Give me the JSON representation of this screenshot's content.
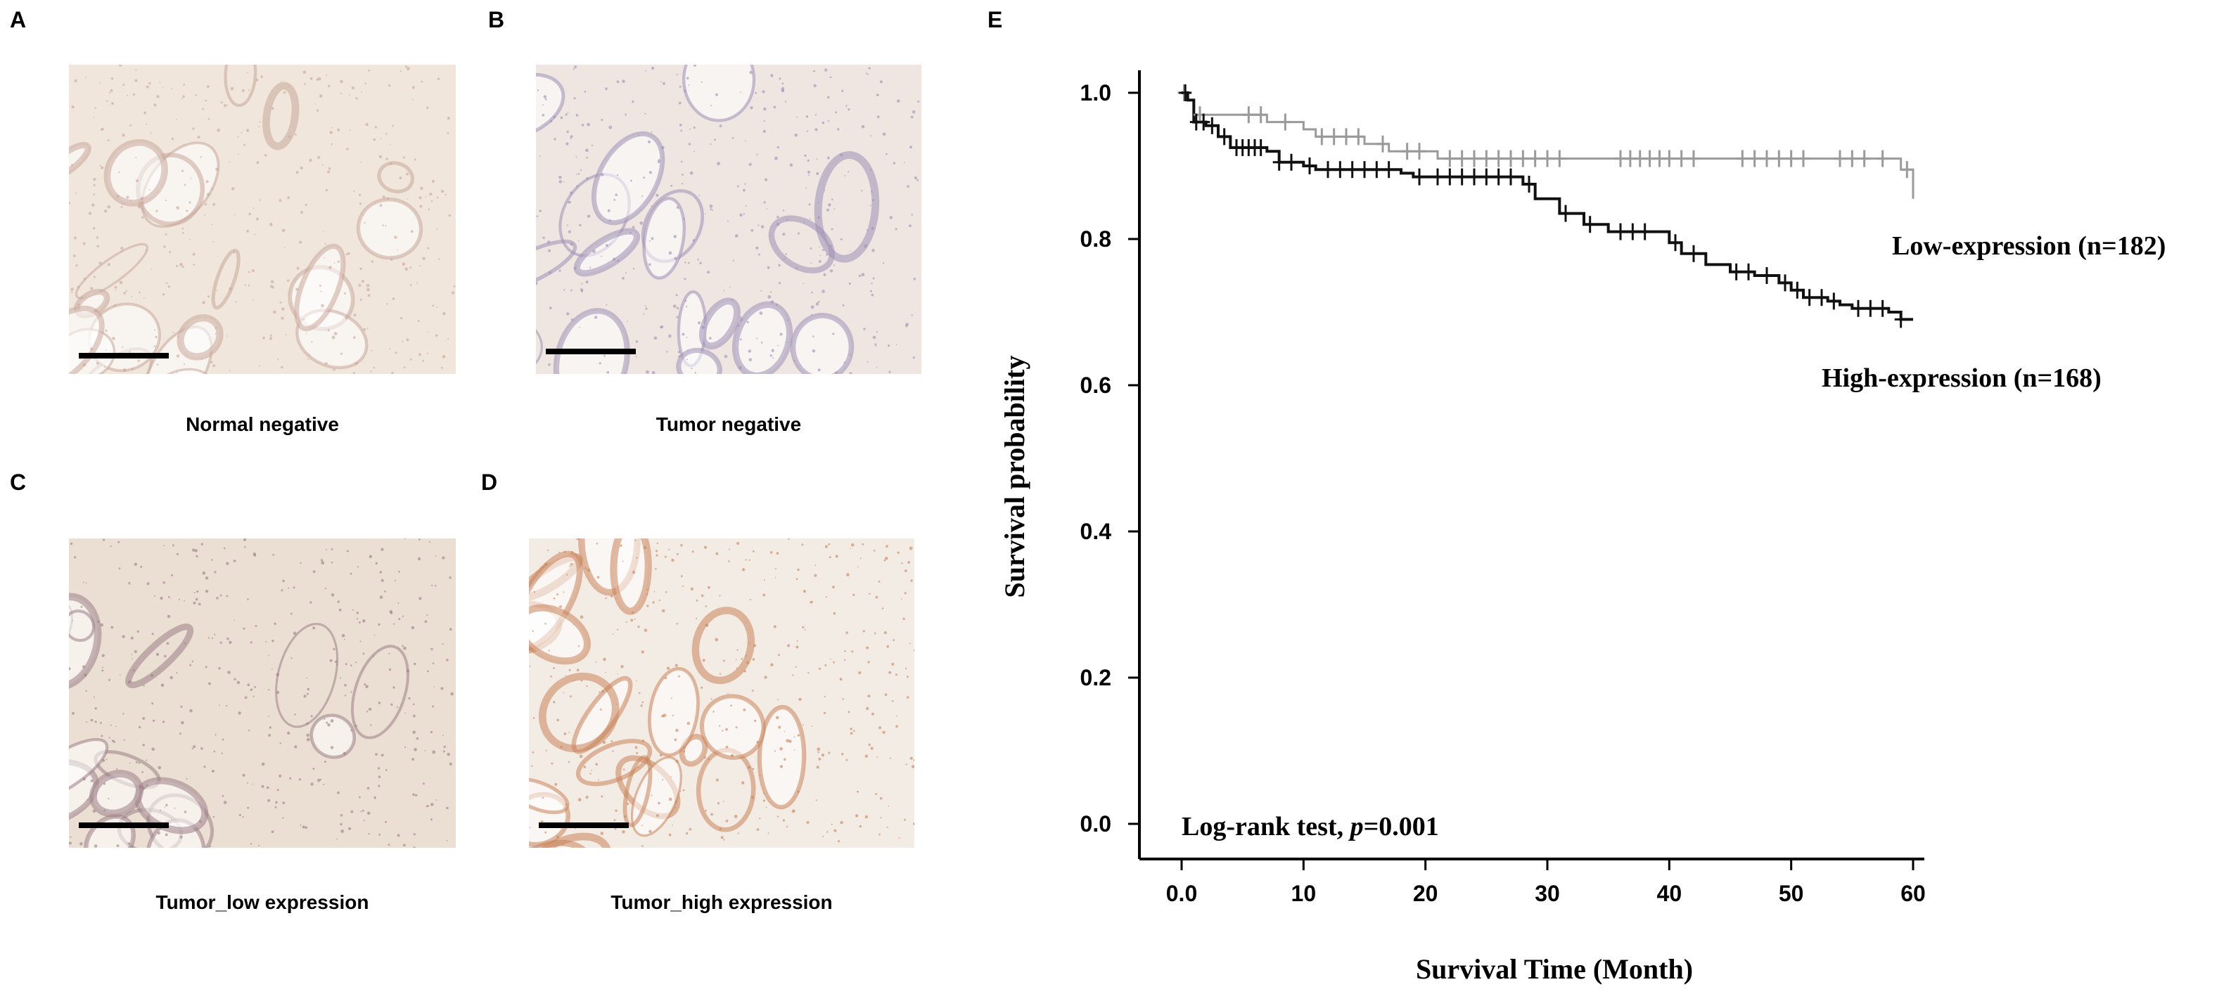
{
  "panels": [
    {
      "letter": "A",
      "caption": "Normal negative",
      "stain": "#f0e6dc",
      "tint": "#c9a79a"
    },
    {
      "letter": "B",
      "caption": "Tumor negative",
      "stain": "#efe6e2",
      "tint": "#9c8fb5"
    },
    {
      "letter": "C",
      "caption": "Tumor_low expression",
      "stain": "#eadfd2",
      "tint": "#9b7e86"
    },
    {
      "letter": "D",
      "caption": "Tumor_high expression",
      "stain": "#f3ece4",
      "tint": "#c8845a"
    }
  ],
  "chart_letter": "E",
  "chart_data": {
    "type": "line",
    "title": "",
    "xlabel": "Survival Time (Month)",
    "ylabel": "Survival probability",
    "xlim": [
      0,
      60
    ],
    "ylim": [
      0,
      1
    ],
    "xticks": [
      "0.0",
      "10",
      "20",
      "30",
      "40",
      "50",
      "60"
    ],
    "yticks": [
      "0.0",
      "0.2",
      "0.4",
      "0.6",
      "0.8",
      "1.0"
    ],
    "annotation_prefix": "Log-rank test, ",
    "annotation_p": "p",
    "annotation_value": "=0.001",
    "series": [
      {
        "name": "Low-expression (n=182)",
        "color": "#9a9a9a",
        "x": [
          0,
          0.5,
          1,
          6,
          7,
          10,
          11,
          15,
          17,
          19,
          21,
          58,
          59,
          60
        ],
        "y": [
          1.0,
          0.99,
          0.97,
          0.97,
          0.96,
          0.95,
          0.94,
          0.93,
          0.92,
          0.92,
          0.91,
          0.91,
          0.895,
          0.855
        ],
        "censored_x": [
          0.2,
          1.5,
          5.5,
          6.5,
          8.5,
          11.5,
          12.5,
          13.5,
          14.5,
          16.5,
          18.5,
          19.5,
          22,
          23,
          24,
          25,
          26,
          27,
          28,
          29,
          30,
          31,
          36,
          36.8,
          37.6,
          38.4,
          39.2,
          40,
          41,
          42,
          46,
          47,
          48,
          49,
          50,
          51,
          54,
          55,
          56,
          57.5,
          59.5
        ]
      },
      {
        "name": "High-expression (n=168)",
        "color": "#111111",
        "x": [
          0,
          0.5,
          1,
          2,
          3,
          4,
          7,
          8,
          10,
          11,
          18,
          19,
          28,
          29,
          31,
          33,
          35,
          40,
          41,
          43,
          45,
          47,
          49,
          50,
          51,
          53,
          54,
          55,
          58,
          59,
          60
        ],
        "y": [
          1.0,
          0.99,
          0.96,
          0.955,
          0.94,
          0.925,
          0.92,
          0.905,
          0.9,
          0.895,
          0.89,
          0.885,
          0.875,
          0.855,
          0.835,
          0.82,
          0.81,
          0.795,
          0.78,
          0.765,
          0.755,
          0.75,
          0.74,
          0.73,
          0.72,
          0.715,
          0.71,
          0.705,
          0.7,
          0.69,
          0.69
        ],
        "censored_x": [
          0.3,
          1.2,
          1.8,
          2.5,
          3.5,
          4.5,
          5,
          5.5,
          6,
          6.5,
          8,
          9,
          10.5,
          12,
          13,
          14,
          15,
          16,
          17,
          19.5,
          21,
          22,
          23,
          24,
          25,
          26,
          27,
          28.5,
          31.5,
          33.5,
          36,
          37,
          38,
          40.5,
          42,
          45.5,
          46.5,
          48,
          49.5,
          50.5,
          51.5,
          52.5,
          53.5,
          55.5,
          56.5,
          57.5,
          59
        ]
      }
    ]
  }
}
